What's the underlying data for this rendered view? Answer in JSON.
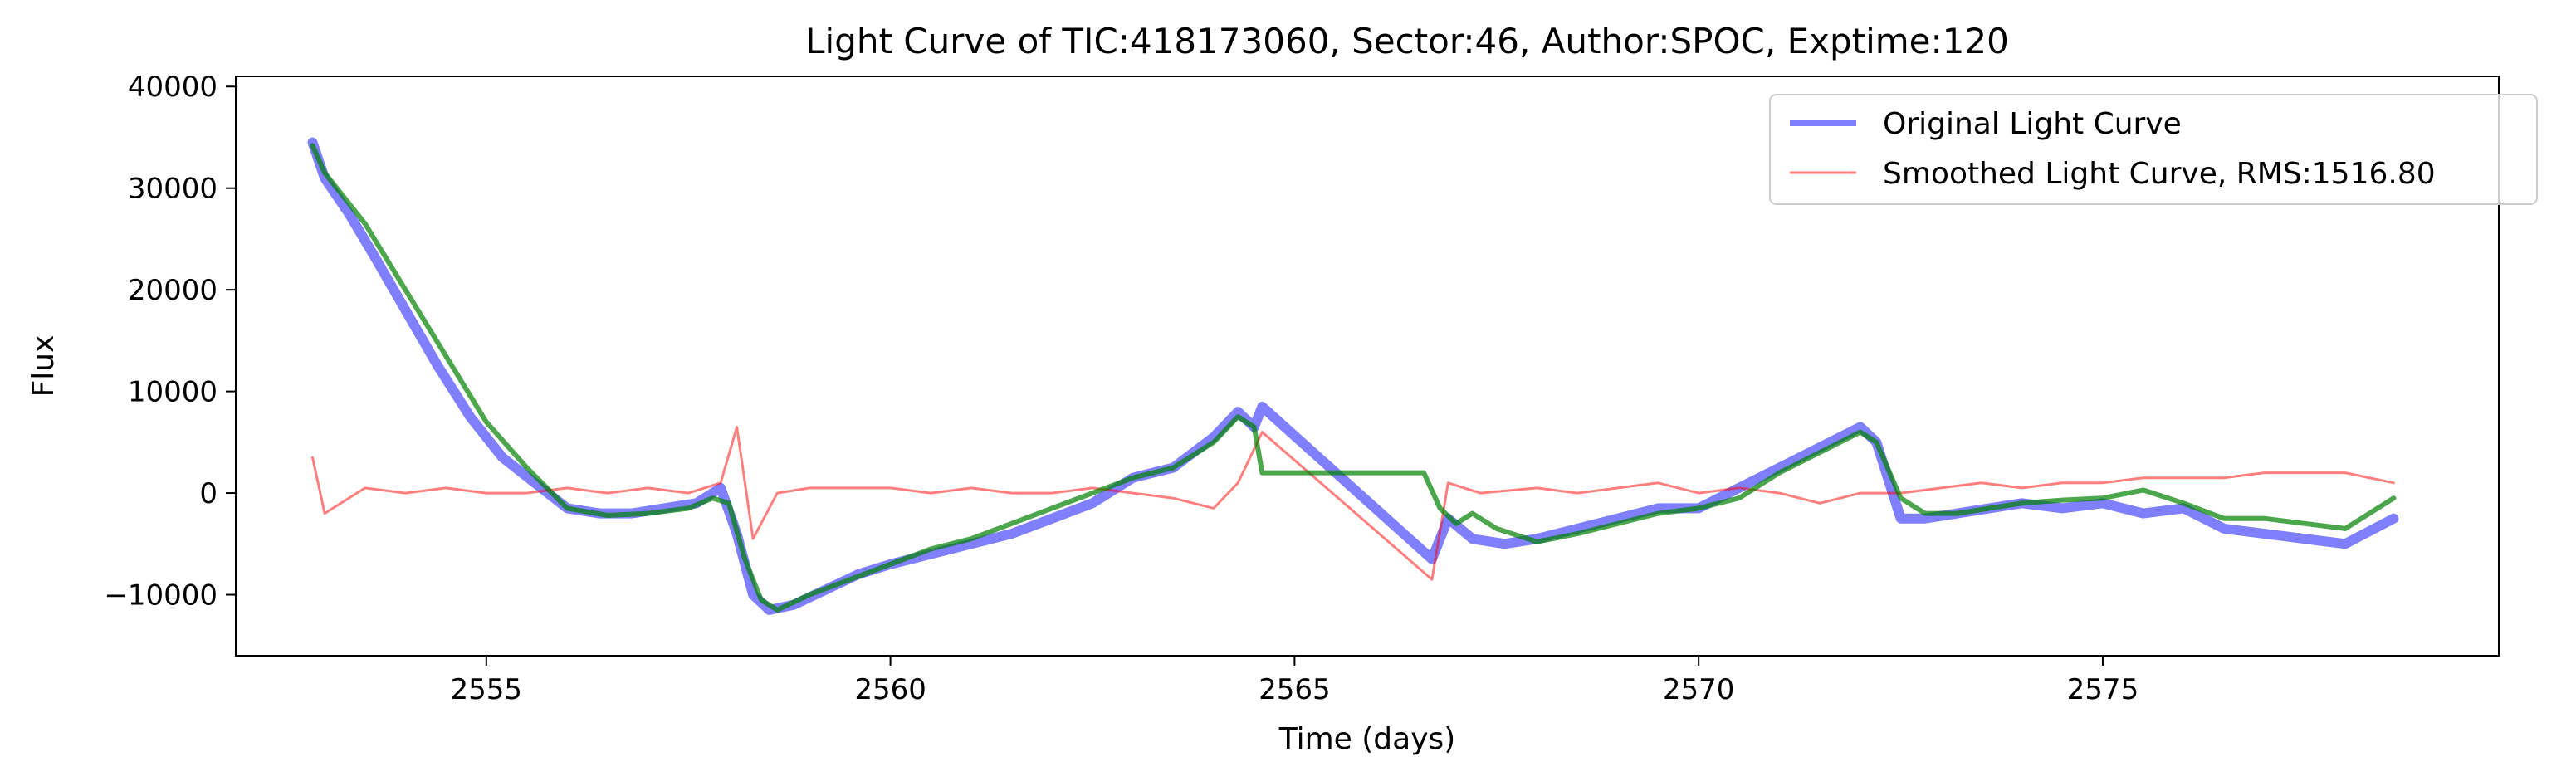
{
  "chart_data": {
    "type": "line",
    "title": "Light Curve of TIC:418173060, Sector:46, Author:SPOC, Exptime:120",
    "xlabel": "Time (days)",
    "ylabel": "Flux",
    "xlim": [
      2551.9,
      2579.9
    ],
    "ylim": [
      -16000,
      41000
    ],
    "x_ticks": [
      2555,
      2560,
      2565,
      2570,
      2575
    ],
    "y_ticks": [
      -10000,
      0,
      10000,
      20000,
      30000,
      40000
    ],
    "x_tick_labels": [
      "2555",
      "2560",
      "2565",
      "2570",
      "2575"
    ],
    "y_tick_labels": [
      "−10000",
      "0",
      "10000",
      "20000",
      "30000",
      "40000"
    ],
    "grid": false,
    "legend_position": "top-right",
    "series": [
      {
        "name": "Original Light Curve",
        "color": "#0000ff",
        "opacity": 0.5,
        "x": [
          2552.85,
          2553.0,
          2553.3,
          2553.6,
          2554.0,
          2554.4,
          2554.8,
          2555.2,
          2555.6,
          2556.0,
          2556.4,
          2556.8,
          2557.2,
          2557.6,
          2557.9,
          2558.1,
          2558.3,
          2558.5,
          2558.8,
          2559.2,
          2559.6,
          2560.0,
          2560.5,
          2561.0,
          2561.5,
          2562.0,
          2562.5,
          2563.0,
          2563.5,
          2564.0,
          2564.3,
          2564.5,
          2564.6,
          2566.7,
          2566.9,
          2567.2,
          2567.6,
          2568.0,
          2568.5,
          2569.0,
          2569.5,
          2570.0,
          2570.5,
          2571.0,
          2571.5,
          2572.0,
          2572.2,
          2572.5,
          2572.8,
          2573.2,
          2573.6,
          2574.0,
          2574.5,
          2575.0,
          2575.5,
          2576.0,
          2576.5,
          2577.0,
          2577.5,
          2578.0,
          2578.6
        ],
        "values": [
          34500,
          31000,
          27500,
          23500,
          18000,
          12500,
          7500,
          3500,
          1000,
          -1500,
          -2000,
          -2000,
          -1500,
          -1000,
          500,
          -4000,
          -10000,
          -11500,
          -11000,
          -9500,
          -8000,
          -7000,
          -6000,
          -5000,
          -4000,
          -2500,
          -1000,
          1500,
          2500,
          5500,
          8000,
          6500,
          8500,
          -6500,
          -2500,
          -4500,
          -5000,
          -4500,
          -3500,
          -2500,
          -1500,
          -1500,
          500,
          2500,
          4500,
          6500,
          5000,
          -2500,
          -2500,
          -2000,
          -1500,
          -1000,
          -1500,
          -1000,
          -2000,
          -1500,
          -3500,
          -4000,
          -4500,
          -5000,
          -2500
        ]
      },
      {
        "name": "Smoothed Light Curve, RMS:1516.80",
        "color": "#ff0000",
        "opacity": 0.5,
        "x": [
          2552.85,
          2553.0,
          2553.5,
          2554.0,
          2554.5,
          2555.0,
          2555.5,
          2556.0,
          2556.5,
          2557.0,
          2557.5,
          2557.9,
          2558.1,
          2558.3,
          2558.6,
          2559.0,
          2559.5,
          2560.0,
          2560.5,
          2561.0,
          2561.5,
          2562.0,
          2562.5,
          2563.0,
          2563.5,
          2564.0,
          2564.3,
          2564.6,
          2566.7,
          2566.9,
          2567.3,
          2568.0,
          2568.5,
          2569.0,
          2569.5,
          2570.0,
          2570.5,
          2571.0,
          2571.5,
          2572.0,
          2572.5,
          2573.0,
          2573.5,
          2574.0,
          2574.5,
          2575.0,
          2575.5,
          2576.0,
          2576.5,
          2577.0,
          2577.5,
          2578.0,
          2578.6
        ],
        "values": [
          3500,
          -2000,
          500,
          0,
          500,
          0,
          0,
          500,
          0,
          500,
          0,
          1000,
          6500,
          -4500,
          0,
          500,
          500,
          500,
          0,
          500,
          0,
          0,
          500,
          0,
          -500,
          -1500,
          1000,
          6000,
          -8500,
          1000,
          0,
          500,
          0,
          500,
          1000,
          0,
          500,
          0,
          -1000,
          0,
          0,
          500,
          1000,
          500,
          1000,
          1000,
          1500,
          1500,
          1500,
          2000,
          2000,
          2000,
          1000
        ]
      },
      {
        "name": "",
        "color": "#008000",
        "opacity": 0.7,
        "x": [
          2552.85,
          2553.0,
          2553.5,
          2554.0,
          2554.5,
          2555.0,
          2555.5,
          2556.0,
          2556.5,
          2557.0,
          2557.5,
          2557.8,
          2558.0,
          2558.2,
          2558.4,
          2558.6,
          2559.0,
          2559.5,
          2560.0,
          2560.5,
          2561.0,
          2561.5,
          2562.0,
          2562.5,
          2563.0,
          2563.5,
          2564.0,
          2564.3,
          2564.5,
          2564.6,
          2566.6,
          2566.8,
          2567.0,
          2567.2,
          2567.5,
          2568.0,
          2568.5,
          2569.0,
          2569.5,
          2570.0,
          2570.5,
          2571.0,
          2571.5,
          2572.0,
          2572.2,
          2572.5,
          2572.8,
          2573.2,
          2573.6,
          2574.0,
          2574.5,
          2575.0,
          2575.5,
          2576.0,
          2576.5,
          2577.0,
          2577.5,
          2578.0,
          2578.6
        ],
        "values": [
          34200,
          31500,
          26500,
          20000,
          13500,
          7000,
          2500,
          -1500,
          -2200,
          -2000,
          -1500,
          -500,
          -1000,
          -6500,
          -10500,
          -11500,
          -10000,
          -8500,
          -7000,
          -5500,
          -4500,
          -3000,
          -1500,
          0,
          1500,
          2500,
          5000,
          7500,
          6500,
          2000,
          2000,
          -1500,
          -3000,
          -2000,
          -3500,
          -4800,
          -4000,
          -3000,
          -2000,
          -1500,
          -500,
          2000,
          4000,
          6000,
          5000,
          -500,
          -2000,
          -2000,
          -1500,
          -1000,
          -700,
          -500,
          300,
          -1000,
          -2500,
          -2500,
          -3000,
          -3500,
          -500
        ]
      }
    ]
  }
}
